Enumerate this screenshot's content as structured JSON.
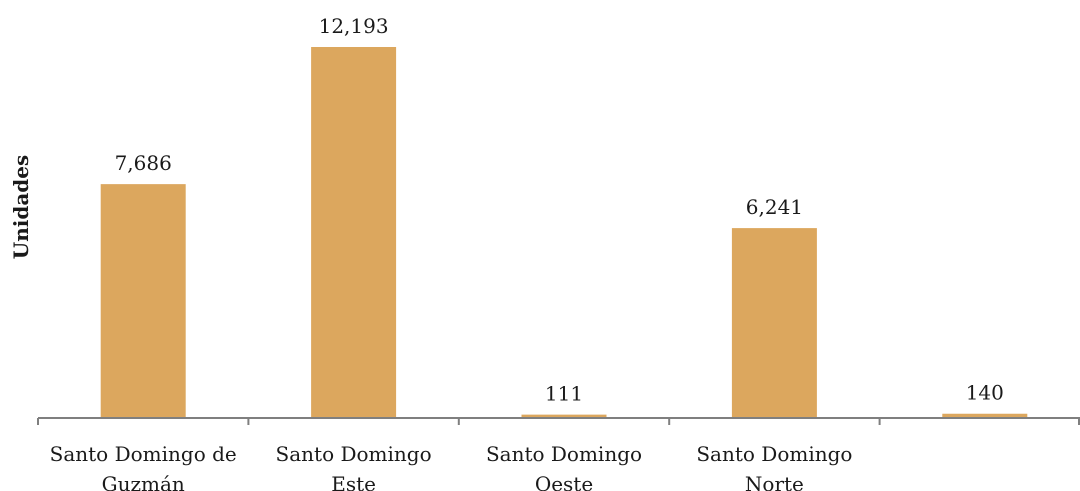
{
  "chart_data": {
    "type": "bar",
    "title": "",
    "xlabel": "",
    "ylabel": "Unidades",
    "categories": [
      [
        "Santo Domingo de",
        "Guzmán"
      ],
      [
        "Santo Domingo",
        "Este"
      ],
      [
        "Santo Domingo",
        "Oeste"
      ],
      [
        "Santo Domingo",
        "Norte"
      ],
      [
        ""
      ]
    ],
    "values": [
      7686,
      12193,
      111,
      6241,
      140
    ],
    "value_labels": [
      "7,686",
      "12,193",
      "111",
      "6,241",
      "140"
    ],
    "ylim": [
      0,
      12193
    ],
    "grid": false,
    "legend": "none",
    "colors": {
      "bar": "#DCA75E",
      "axis": "#7f7f7f"
    }
  }
}
